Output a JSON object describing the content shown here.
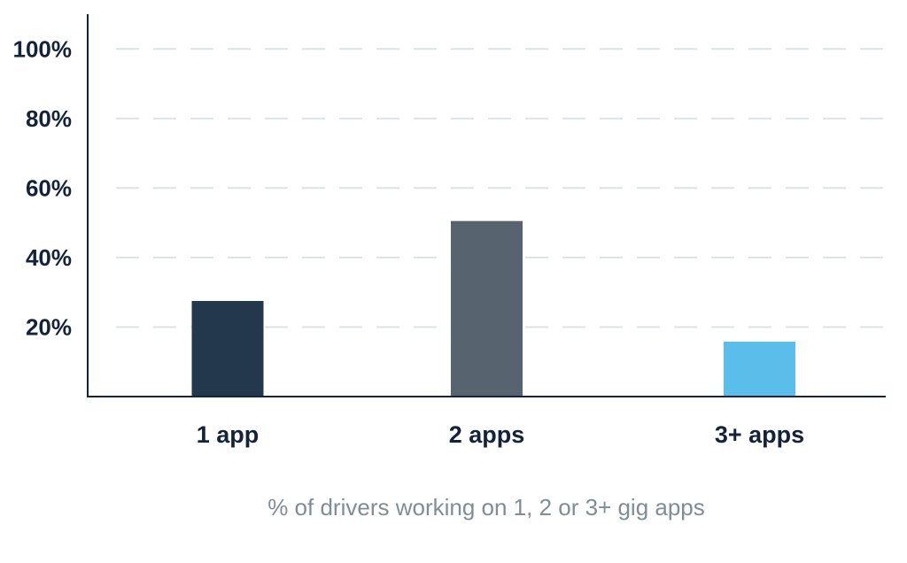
{
  "chart_data": {
    "type": "bar",
    "categories": [
      "1 app",
      "2 apps",
      "3+ apps"
    ],
    "values": [
      27.5,
      50.5,
      15.8
    ],
    "colors": [
      "#23374d",
      "#57636f",
      "#5bbde9"
    ],
    "ylim": [
      0,
      110
    ],
    "yticks": [
      20,
      40,
      60,
      80,
      100
    ],
    "ytick_labels": [
      "20%",
      "40%",
      "60%",
      "80%",
      "100%"
    ],
    "grid": true,
    "xlabel": "% of drivers working on 1, 2 or 3+ gig apps",
    "ylabel": "",
    "title": ""
  }
}
